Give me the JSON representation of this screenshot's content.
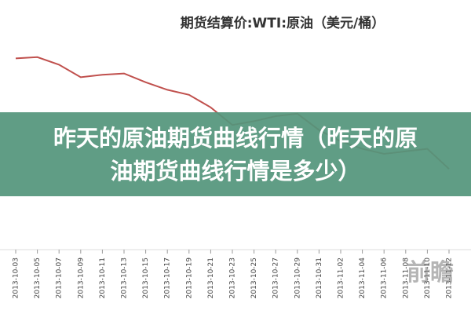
{
  "chart_data": {
    "type": "line",
    "title": "期货结算价:WTI:原油（美元/桶）",
    "categories": [
      "2013-10-03",
      "2013-10-05",
      "2013-10-07",
      "2013-10-09",
      "2013-10-11",
      "2013-10-13",
      "2013-10-15",
      "2013-10-17",
      "2013-10-19",
      "2013-10-21",
      "2013-10-23",
      "2013-10-25",
      "2013-10-27",
      "2013-10-29",
      "2013-10-31",
      "2013-11-02",
      "2013-11-04",
      "2013-11-06",
      "2013-11-08",
      "2013-11-10",
      "2013-11-12"
    ],
    "values": [
      103.6,
      103.7,
      103.1,
      102.1,
      102.3,
      102.4,
      101.7,
      101.1,
      100.7,
      99.7,
      98.3,
      98.6,
      99.0,
      99.2,
      97.9,
      97.0,
      96.4,
      96.0,
      96.2,
      96.4,
      94.8
    ],
    "color": "#c0504d",
    "ylim": [
      90,
      108
    ]
  },
  "banner": {
    "text": "昨天的原油期货曲线行情（昨天的原油期货曲线行情是多少）"
  },
  "watermark": "前瞻"
}
